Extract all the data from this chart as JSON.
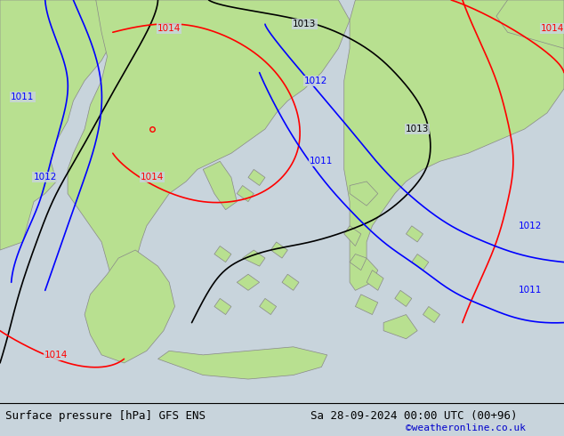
{
  "title_left": "Surface pressure [hPa] GFS ENS",
  "title_right": "Sa 28-09-2024 00:00 UTC (00+96)",
  "credit": "©weatheronline.co.uk",
  "bg_color": "#d0d8d0",
  "sea_color": "#c8d4dc",
  "land_color": "#b8e090",
  "border_color": "#888888",
  "bottom_bar_color": "#e0e0e0",
  "font_size_bottom": 9,
  "font_size_credit": 8,
  "credit_color": "#0000cc"
}
